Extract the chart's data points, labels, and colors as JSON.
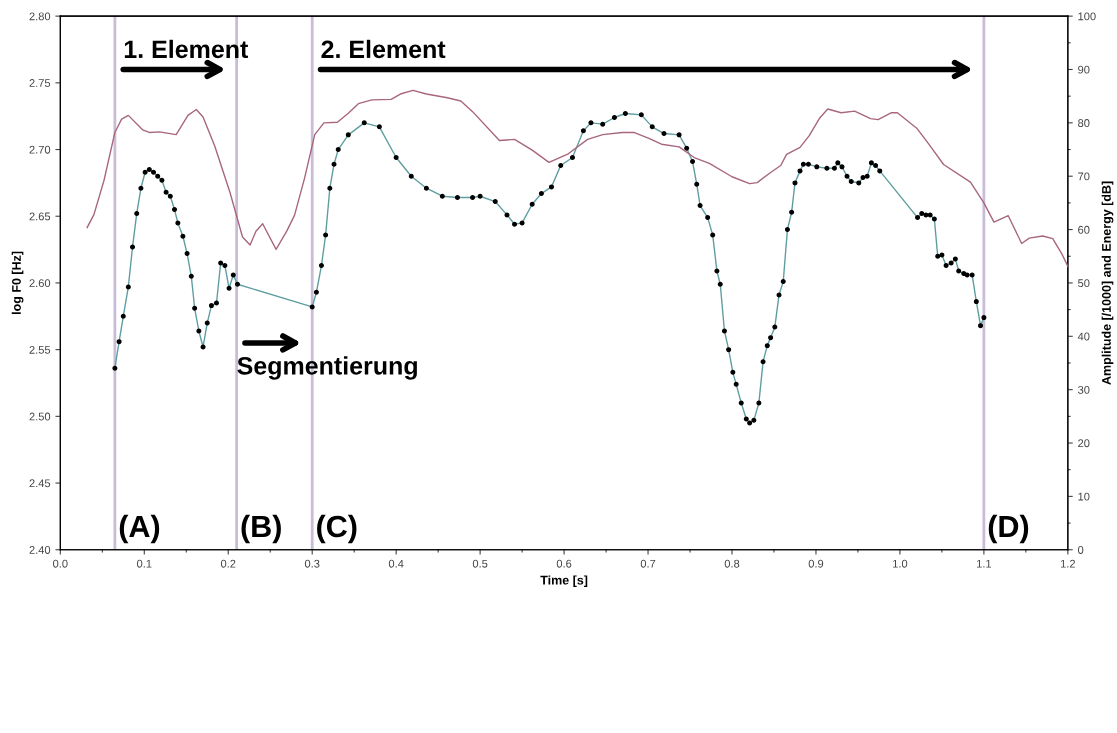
{
  "chart_data": {
    "type": "line",
    "xlabel": "Time [s]",
    "ylabel": "log F0 [Hz]",
    "y2label": "Amplitude [/1000] and Energy [dB]",
    "xlim": [
      0,
      1.2
    ],
    "xticks": [
      {
        "value": 0,
        "label": "0.0"
      },
      {
        "value": 0.1,
        "label": "0.1"
      },
      {
        "value": 0.2,
        "label": "0.2"
      },
      {
        "value": 0.3,
        "label": "0.3"
      },
      {
        "value": 0.4,
        "label": "0.4"
      },
      {
        "value": 0.5,
        "label": "0.5"
      },
      {
        "value": 0.6,
        "label": "0.6"
      },
      {
        "value": 0.7,
        "label": "0.7"
      },
      {
        "value": 0.8,
        "label": "0.8"
      },
      {
        "value": 0.9,
        "label": "0.9"
      },
      {
        "value": 1.0,
        "label": "1.0"
      },
      {
        "value": 1.1,
        "label": "1.1"
      },
      {
        "value": 1.2,
        "label": "1.2"
      }
    ],
    "ylim": [
      2.4,
      2.8
    ],
    "yticks": [
      {
        "value": 2.4,
        "label": "2.40"
      },
      {
        "value": 2.45,
        "label": "2.45"
      },
      {
        "value": 2.5,
        "label": "2.50"
      },
      {
        "value": 2.55,
        "label": "2.55"
      },
      {
        "value": 2.6,
        "label": "2.60"
      },
      {
        "value": 2.65,
        "label": "2.65"
      },
      {
        "value": 2.7,
        "label": "2.70"
      },
      {
        "value": 2.75,
        "label": "2.75"
      },
      {
        "value": 2.8,
        "label": "2.80"
      }
    ],
    "y2lim": [
      0,
      100
    ],
    "y2ticks": [
      0,
      10,
      20,
      30,
      40,
      50,
      60,
      70,
      80,
      90,
      100
    ],
    "line_style": "solid",
    "series": [
      {
        "color": "#5f9ea0",
        "marker": "circle",
        "x": [
          0.065,
          0.07,
          0.075,
          0.081,
          0.086,
          0.091,
          0.096,
          0.101,
          0.106,
          0.111,
          0.116,
          0.121,
          0.126,
          0.131,
          0.136,
          0.14,
          0.146,
          0.151,
          0.156,
          0.16,
          0.165,
          0.17,
          0.175,
          0.18,
          0.186,
          0.191,
          0.196,
          0.201,
          0.206,
          0.211,
          0.3,
          0.305,
          0.311,
          0.316,
          0.321,
          0.326,
          0.331,
          0.343,
          0.362,
          0.38,
          0.4,
          0.418,
          0.436,
          0.455,
          0.473,
          0.491,
          0.5,
          0.518,
          0.532,
          0.541,
          0.55,
          0.562,
          0.573,
          0.585,
          0.596,
          0.61,
          0.623,
          0.632,
          0.646,
          0.66,
          0.673,
          0.692,
          0.705,
          0.719,
          0.737,
          0.746,
          0.753,
          0.758,
          0.762,
          0.771,
          0.777,
          0.782,
          0.786,
          0.791,
          0.796,
          0.801,
          0.805,
          0.811,
          0.817,
          0.821,
          0.826,
          0.832,
          0.837,
          0.842,
          0.846,
          0.851,
          0.856,
          0.861,
          0.866,
          0.871,
          0.875,
          0.881,
          0.885,
          0.891,
          0.901,
          0.913,
          0.922,
          0.926,
          0.931,
          0.937,
          0.942,
          0.951,
          0.956,
          0.961,
          0.966,
          0.971,
          0.976,
          1.021,
          1.026,
          1.031,
          1.036,
          1.041,
          1.045,
          1.05,
          1.055,
          1.061,
          1.066,
          1.07,
          1.076,
          1.08,
          1.086,
          1.091,
          1.096,
          1.1
        ],
        "values": [
          2.536,
          2.556,
          2.575,
          2.597,
          2.627,
          2.652,
          2.671,
          2.683,
          2.685,
          2.683,
          2.68,
          2.677,
          2.668,
          2.665,
          2.655,
          2.645,
          2.635,
          2.622,
          2.605,
          2.581,
          2.564,
          2.552,
          2.57,
          2.583,
          2.585,
          2.615,
          2.613,
          2.596,
          2.606,
          2.599,
          2.582,
          2.593,
          2.613,
          2.636,
          2.671,
          2.689,
          2.7,
          2.711,
          2.72,
          2.717,
          2.694,
          2.68,
          2.671,
          2.665,
          2.664,
          2.664,
          2.665,
          2.661,
          2.651,
          2.644,
          2.645,
          2.659,
          2.667,
          2.672,
          2.688,
          2.694,
          2.714,
          2.72,
          2.719,
          2.724,
          2.727,
          2.726,
          2.717,
          2.712,
          2.711,
          2.701,
          2.691,
          2.674,
          2.658,
          2.649,
          2.636,
          2.609,
          2.599,
          2.564,
          2.55,
          2.533,
          2.524,
          2.51,
          2.498,
          2.495,
          2.497,
          2.51,
          2.541,
          2.553,
          2.559,
          2.567,
          2.591,
          2.601,
          2.64,
          2.653,
          2.675,
          2.684,
          2.689,
          2.689,
          2.687,
          2.686,
          2.686,
          2.69,
          2.687,
          2.68,
          2.676,
          2.675,
          2.679,
          2.68,
          2.69,
          2.688,
          2.684,
          2.649,
          2.652,
          2.651,
          2.651,
          2.648,
          2.62,
          2.621,
          2.613,
          2.615,
          2.618,
          2.609,
          2.607,
          2.606,
          2.606,
          2.586,
          2.568,
          2.574
        ]
      },
      {
        "color": "#a8667e",
        "axis": "y2",
        "marker": "none",
        "x": [
          0.032,
          0.04,
          0.052,
          0.065,
          0.073,
          0.081,
          0.098,
          0.106,
          0.118,
          0.138,
          0.152,
          0.162,
          0.17,
          0.184,
          0.202,
          0.217,
          0.226,
          0.233,
          0.241,
          0.257,
          0.27,
          0.279,
          0.291,
          0.303,
          0.314,
          0.33,
          0.343,
          0.355,
          0.371,
          0.394,
          0.405,
          0.42,
          0.436,
          0.461,
          0.477,
          0.491,
          0.523,
          0.541,
          0.562,
          0.582,
          0.605,
          0.628,
          0.646,
          0.669,
          0.683,
          0.701,
          0.716,
          0.737,
          0.755,
          0.773,
          0.8,
          0.821,
          0.83,
          0.846,
          0.858,
          0.865,
          0.881,
          0.892,
          0.904,
          0.914,
          0.93,
          0.946,
          0.965,
          0.974,
          0.99,
          0.997,
          1.02,
          1.034,
          1.052,
          1.084,
          1.1,
          1.112,
          1.129,
          1.145,
          1.154,
          1.17,
          1.182,
          1.193,
          1.2
        ],
        "values": [
          60.4,
          62.8,
          69.2,
          78.2,
          80.7,
          81.4,
          78.7,
          78.2,
          78.3,
          77.8,
          81.4,
          82.5,
          81.1,
          75.6,
          67.0,
          58.6,
          57.1,
          59.7,
          61.1,
          56.3,
          59.8,
          62.7,
          69.7,
          77.8,
          80.0,
          80.1,
          81.8,
          83.6,
          84.3,
          84.4,
          85.4,
          86.1,
          85.4,
          84.7,
          84.1,
          82.1,
          76.7,
          76.9,
          74.9,
          72.6,
          74.2,
          76.9,
          77.8,
          78.2,
          78.2,
          77.1,
          76.0,
          75.5,
          73.5,
          72.4,
          69.9,
          68.6,
          68.8,
          70.7,
          72.0,
          74.1,
          75.4,
          77.6,
          80.8,
          82.6,
          81.9,
          82.2,
          80.8,
          80.6,
          81.9,
          81.9,
          79.0,
          76.1,
          72.2,
          68.9,
          65.0,
          61.4,
          62.6,
          57.4,
          58.4,
          58.8,
          58.3,
          55.4,
          53.1
        ]
      }
    ],
    "ref_lines": [
      {
        "axis": "x",
        "value": 0.065,
        "label": "(A)",
        "color": "#c8bcd8"
      },
      {
        "axis": "x",
        "value": 0.21,
        "label": "(B)",
        "color": "#c8bcd8"
      },
      {
        "axis": "x",
        "value": 0.3,
        "label": "(C)",
        "color": "#c8bcd8"
      },
      {
        "axis": "x",
        "value": 1.1,
        "label": "(D)",
        "color": "#c8bcd8"
      }
    ],
    "annotations": [
      "1. Element",
      "Segmentierung",
      "2. Element"
    ]
  }
}
